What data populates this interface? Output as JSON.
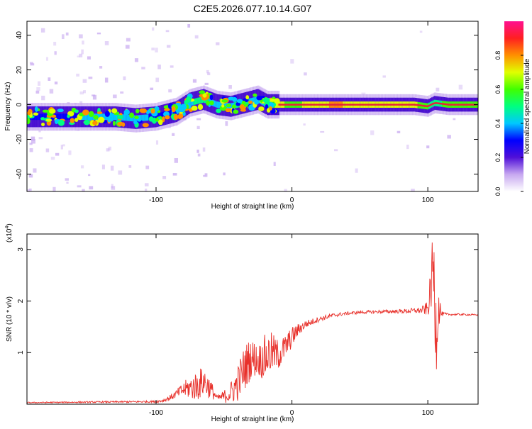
{
  "title": "C2E5.2026.077.10.14.G07",
  "colors": {
    "snr_line": "#e8312b",
    "axes": "#000000",
    "spectrum_ridge": "#e8213a"
  },
  "chart_data": [
    {
      "type": "heatmap",
      "name": "spectrogram",
      "xlabel": "Height of straight line (km)",
      "ylabel": "Frequency (Hz)",
      "xlim": [
        -195,
        137
      ],
      "ylim": [
        -50,
        48
      ],
      "xticks": [
        -100,
        0,
        100
      ],
      "xtick_labels": [
        "-100",
        "0",
        "100"
      ],
      "yticks": [
        -40,
        -20,
        0,
        20,
        40
      ],
      "ytick_labels": [
        "-40",
        "-20",
        "0",
        "20",
        "40"
      ],
      "colorbar": {
        "label": "Normalized spectral amplitude",
        "range": [
          0.0,
          1.0
        ],
        "ticks": [
          0.0,
          0.2,
          0.4,
          0.6,
          0.8
        ],
        "tick_labels": [
          "0.0",
          "0.2",
          "0.4",
          "0.6",
          "0.8"
        ],
        "colormap": [
          "#ffffff",
          "#c7a8f0",
          "#5010d8",
          "#0000ff",
          "#00c8ff",
          "#00ff80",
          "#40ff00",
          "#e0ff00",
          "#ff9000",
          "#ff2020",
          "#ff1090"
        ]
      },
      "ridge_x": [
        -195,
        -170,
        -150,
        -130,
        -115,
        -100,
        -85,
        -75,
        -65,
        -55,
        -45,
        -35,
        -25,
        -18,
        -10,
        0,
        10,
        30,
        60,
        90,
        100,
        105,
        115,
        137
      ],
      "ridge_y": [
        -7,
        -7,
        -7,
        -7,
        -8,
        -7,
        -4,
        1,
        3,
        0,
        -1,
        1,
        3,
        0,
        0,
        0,
        0,
        0,
        0,
        0,
        -1,
        1,
        0,
        0
      ],
      "ridge_amplitude": [
        0.35,
        0.4,
        0.45,
        0.45,
        0.5,
        0.4,
        0.45,
        0.55,
        0.6,
        0.5,
        0.55,
        0.6,
        0.5,
        0.6,
        0.9,
        0.7,
        0.85,
        0.95,
        0.9,
        0.85,
        0.7,
        0.6,
        0.75,
        0.7
      ]
    },
    {
      "type": "line",
      "name": "snr",
      "xlabel": "Height of straight line (km)",
      "ylabel": "SNR (10 * v/v)",
      "y_multiplier_label": "(x10",
      "y_multiplier_exp": "4",
      "y_multiplier_close": ")",
      "xlim": [
        -195,
        137
      ],
      "ylim": [
        0,
        3.3
      ],
      "xticks": [
        -100,
        0,
        100
      ],
      "xtick_labels": [
        "-100",
        "0",
        "100"
      ],
      "yticks": [
        1,
        2,
        3
      ],
      "ytick_labels": [
        "1",
        "2",
        "3"
      ],
      "envelope_x": [
        -195,
        -150,
        -100,
        -95,
        -90,
        -85,
        -80,
        -75,
        -70,
        -65,
        -60,
        -55,
        -50,
        -45,
        -40,
        -35,
        -30,
        -25,
        -20,
        -15,
        -10,
        -5,
        0,
        5,
        10,
        15,
        20,
        30,
        40,
        50,
        60,
        80,
        95,
        100,
        102,
        104,
        106,
        108,
        110,
        115,
        125,
        137
      ],
      "envelope_y": [
        0.03,
        0.04,
        0.05,
        0.07,
        0.12,
        0.2,
        0.28,
        0.32,
        0.35,
        0.45,
        0.3,
        0.12,
        0.15,
        0.22,
        0.4,
        0.7,
        0.9,
        0.85,
        0.9,
        1.0,
        0.95,
        1.1,
        1.3,
        1.45,
        1.55,
        1.6,
        1.65,
        1.72,
        1.76,
        1.78,
        1.79,
        1.8,
        1.82,
        1.85,
        2.2,
        2.7,
        1.5,
        1.9,
        1.75,
        1.74,
        1.74,
        1.73
      ],
      "noise_x": [
        -195,
        -100,
        -95,
        -85,
        -80,
        -75,
        -70,
        -65,
        -60,
        -55,
        -50,
        -45,
        -40,
        -35,
        -30,
        -25,
        -20,
        -15,
        -10,
        -5,
        0,
        5,
        10,
        15,
        20,
        30,
        40,
        60,
        80,
        95,
        100,
        102,
        104,
        106,
        108,
        110,
        115,
        137
      ],
      "noise_y": [
        0.01,
        0.02,
        0.03,
        0.08,
        0.15,
        0.22,
        0.3,
        0.3,
        0.2,
        0.05,
        0.12,
        0.22,
        0.35,
        0.45,
        0.4,
        0.3,
        0.45,
        0.4,
        0.3,
        0.25,
        0.2,
        0.12,
        0.08,
        0.06,
        0.05,
        0.04,
        0.03,
        0.03,
        0.04,
        0.06,
        0.15,
        0.4,
        0.8,
        1.0,
        0.4,
        0.05,
        0.02,
        0.015
      ]
    }
  ]
}
